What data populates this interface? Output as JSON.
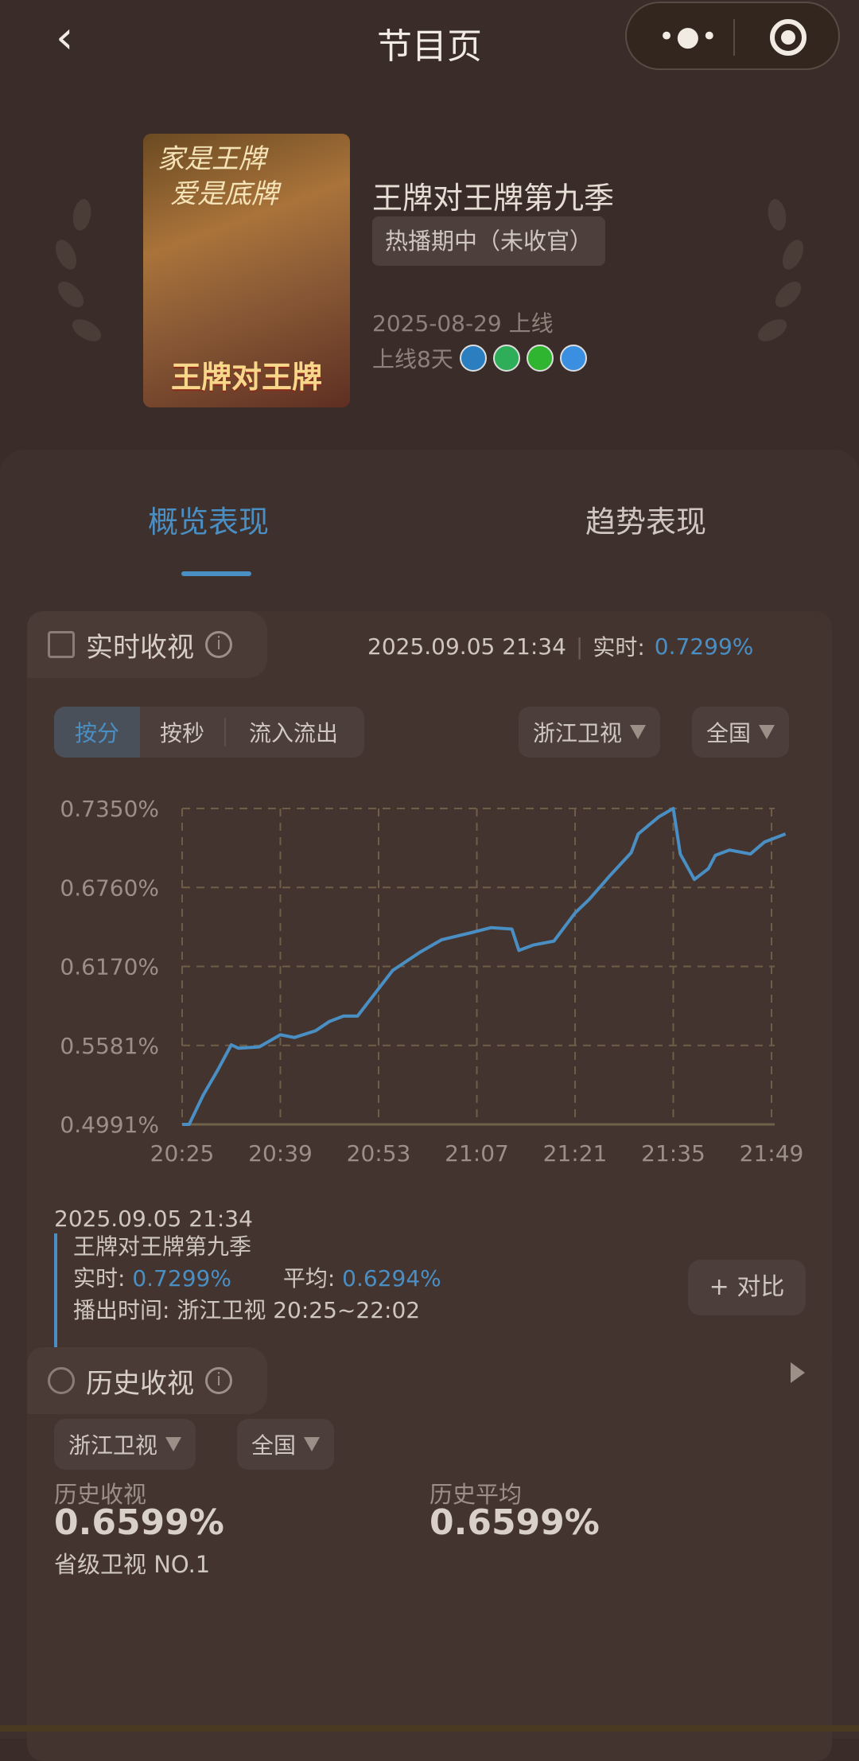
{
  "topbar": {
    "title": "节目页",
    "back_icon": "chevron-left-icon",
    "more_icon": "more-dots-icon",
    "target_icon": "target-icon"
  },
  "show": {
    "poster_slogan_1": "家是王牌",
    "poster_slogan_2": "爱是底牌",
    "poster_logo": "王牌对王牌",
    "title": "王牌对王牌第九季",
    "status": "热播期中（未收官）",
    "premiere": "2025-08-29 上线",
    "days_online": "上线8天",
    "platforms": [
      {
        "name": "zhejiang-tv",
        "color": "#2b7fc1"
      },
      {
        "name": "tencent-video",
        "color": "#2fae5a"
      },
      {
        "name": "iqiyi",
        "color": "#2fb52f"
      },
      {
        "name": "youku",
        "color": "#3a8fe0"
      }
    ]
  },
  "tabs": [
    {
      "label": "概览表现",
      "active": true
    },
    {
      "label": "趋势表现",
      "active": false
    }
  ],
  "realtime": {
    "title": "实时收视",
    "datetime": "2025.09.05 21:34",
    "rt_label": "实时:",
    "rt_value": "0.7299%",
    "modes": [
      "按分",
      "按秒",
      "流入流出"
    ],
    "active_mode": "按分",
    "channel": "浙江卫视",
    "region": "全国",
    "tooltip": {
      "datetime": "2025.09.05 21:34",
      "show": "王牌对王牌第九季",
      "rt_label": "实时:",
      "rt_value": "0.7299%",
      "avg_label": "平均:",
      "avg_value": "0.6294%",
      "airtime": "播出时间:  浙江卫视 20:25~22:02"
    },
    "compare_label": "+ 对比"
  },
  "chart_data": {
    "type": "line",
    "title": "",
    "xlabel": "",
    "ylabel": "",
    "grid": true,
    "yticks": [
      "0.7350%",
      "0.6760%",
      "0.6170%",
      "0.5581%",
      "0.4991%"
    ],
    "ylim": [
      0.4991,
      0.735
    ],
    "xticks": [
      "20:25",
      "20:39",
      "20:53",
      "21:07",
      "21:21",
      "21:35",
      "21:49"
    ],
    "line_color": "#4a8fc4",
    "series": [
      {
        "points": [
          [
            "20:25",
            0.4991
          ],
          [
            "20:26",
            0.4991
          ],
          [
            "20:28",
            0.521
          ],
          [
            "20:30",
            0.539
          ],
          [
            "20:32",
            0.5585
          ],
          [
            "20:33",
            0.556
          ],
          [
            "20:36",
            0.557
          ],
          [
            "20:39",
            0.566
          ],
          [
            "20:41",
            0.564
          ],
          [
            "20:44",
            0.569
          ],
          [
            "20:46",
            0.576
          ],
          [
            "20:48",
            0.58
          ],
          [
            "20:50",
            0.58
          ],
          [
            "20:55",
            0.614
          ],
          [
            "20:59",
            0.628
          ],
          [
            "21:02",
            0.637
          ],
          [
            "21:06",
            0.642
          ],
          [
            "21:09",
            0.646
          ],
          [
            "21:12",
            0.645
          ],
          [
            "21:13",
            0.629
          ],
          [
            "21:15",
            0.633
          ],
          [
            "21:18",
            0.636
          ],
          [
            "21:21",
            0.657
          ],
          [
            "21:23",
            0.667
          ],
          [
            "21:26",
            0.685
          ],
          [
            "21:29",
            0.702
          ],
          [
            "21:30",
            0.716
          ],
          [
            "21:33",
            0.729
          ],
          [
            "21:35",
            0.735
          ],
          [
            "21:36",
            0.701
          ],
          [
            "21:38",
            0.682
          ],
          [
            "21:40",
            0.69
          ],
          [
            "21:41",
            0.7
          ],
          [
            "21:43",
            0.704
          ],
          [
            "21:45",
            0.702
          ],
          [
            "21:46",
            0.701
          ],
          [
            "21:48",
            0.71
          ],
          [
            "21:49",
            0.712
          ],
          [
            "21:51",
            0.716
          ]
        ]
      }
    ]
  },
  "history": {
    "title": "历史收视",
    "channel": "浙江卫视",
    "region": "全国",
    "hist_label": "历史收视",
    "hist_value": "0.6599%",
    "rank": "省级卫视 NO.1",
    "avg_label": "历史平均",
    "avg_value": "0.6599%"
  }
}
